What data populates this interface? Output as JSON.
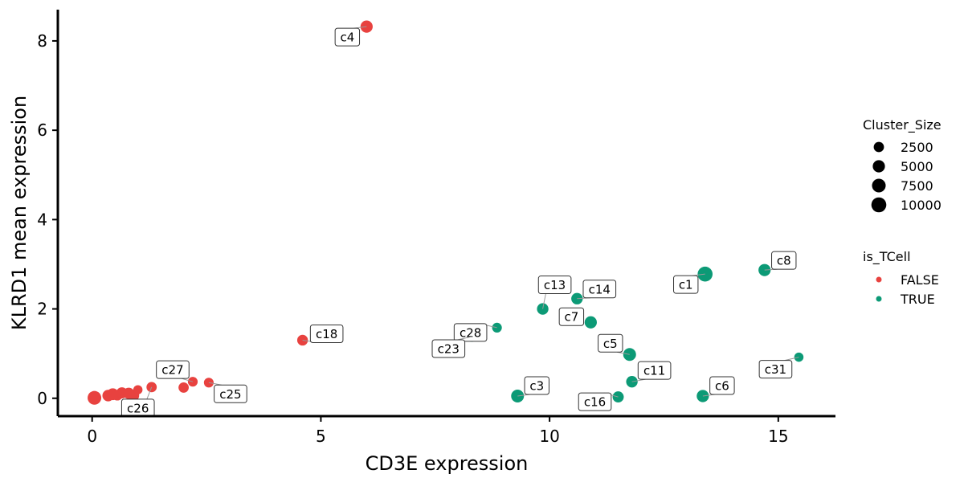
{
  "chart_data": {
    "type": "scatter",
    "xlabel": "CD3E expression",
    "ylabel": "KLRD1 mean expression",
    "xlim": [
      -0.75,
      16.25
    ],
    "ylim": [
      -0.4,
      8.7
    ],
    "x_ticks": [
      0,
      5,
      10,
      15
    ],
    "y_ticks": [
      0,
      2,
      4,
      6,
      8
    ],
    "grid": false,
    "legend_position": "right",
    "colors": {
      "FALSE": "#E8423F",
      "TRUE": "#0C9A76",
      "axis": "#000000",
      "legend_size_swatch": "#000000"
    },
    "size_legend": {
      "title": "Cluster_Size",
      "entries": [
        {
          "value": 2500,
          "label": "2500"
        },
        {
          "value": 5000,
          "label": "5000"
        },
        {
          "value": 7500,
          "label": "7500"
        },
        {
          "value": 10000,
          "label": "10000"
        }
      ]
    },
    "color_legend": {
      "title": "is_TCell",
      "entries": [
        {
          "key": "FALSE",
          "label": "FALSE"
        },
        {
          "key": "TRUE",
          "label": "TRUE"
        }
      ]
    },
    "points": [
      {
        "label": "c4",
        "x": 6.0,
        "y": 8.32,
        "size": 5000,
        "is_TCell": "FALSE"
      },
      {
        "label": "c18",
        "x": 4.6,
        "y": 1.3,
        "size": 3000,
        "is_TCell": "FALSE"
      },
      {
        "label": "c27",
        "x": 2.2,
        "y": 0.37,
        "size": 2000,
        "is_TCell": "FALSE"
      },
      {
        "label": "c26",
        "x": 1.3,
        "y": 0.25,
        "size": 2500,
        "is_TCell": "FALSE"
      },
      {
        "label": "c25",
        "x": 2.55,
        "y": 0.35,
        "size": 2000,
        "is_TCell": "FALSE"
      },
      {
        "label": "",
        "x": 0.05,
        "y": 0.01,
        "size": 7500,
        "is_TCell": "FALSE"
      },
      {
        "label": "",
        "x": 0.35,
        "y": 0.06,
        "size": 4000,
        "is_TCell": "FALSE"
      },
      {
        "label": "",
        "x": 0.45,
        "y": 0.09,
        "size": 4500,
        "is_TCell": "FALSE"
      },
      {
        "label": "",
        "x": 0.55,
        "y": 0.07,
        "size": 3000,
        "is_TCell": "FALSE"
      },
      {
        "label": "",
        "x": 0.65,
        "y": 0.12,
        "size": 3500,
        "is_TCell": "FALSE"
      },
      {
        "label": "",
        "x": 0.8,
        "y": 0.11,
        "size": 3800,
        "is_TCell": "FALSE"
      },
      {
        "label": "",
        "x": 0.9,
        "y": 0.06,
        "size": 4200,
        "is_TCell": "FALSE"
      },
      {
        "label": "",
        "x": 1.0,
        "y": 0.19,
        "size": 1500,
        "is_TCell": "FALSE"
      },
      {
        "label": "",
        "x": 2.0,
        "y": 0.24,
        "size": 2500,
        "is_TCell": "FALSE"
      },
      {
        "label": "c1",
        "x": 13.4,
        "y": 2.78,
        "size": 10000,
        "is_TCell": "TRUE"
      },
      {
        "label": "c8",
        "x": 14.7,
        "y": 2.87,
        "size": 5000,
        "is_TCell": "TRUE"
      },
      {
        "label": "c13",
        "x": 9.85,
        "y": 2.0,
        "size": 4000,
        "is_TCell": "TRUE"
      },
      {
        "label": "c14",
        "x": 10.6,
        "y": 2.23,
        "size": 4000,
        "is_TCell": "TRUE"
      },
      {
        "label": "c28",
        "x": 8.85,
        "y": 1.58,
        "size": 2000,
        "is_TCell": "TRUE"
      },
      {
        "label": "c7",
        "x": 10.9,
        "y": 1.7,
        "size": 5000,
        "is_TCell": "TRUE"
      },
      {
        "label": "c23",
        "x": 8.3,
        "y": 1.38,
        "size": 2500,
        "is_TCell": "TRUE"
      },
      {
        "label": "c5",
        "x": 11.75,
        "y": 0.98,
        "size": 6000,
        "is_TCell": "TRUE"
      },
      {
        "label": "c31",
        "x": 15.45,
        "y": 0.92,
        "size": 1500,
        "is_TCell": "TRUE"
      },
      {
        "label": "c11",
        "x": 11.8,
        "y": 0.37,
        "size": 4000,
        "is_TCell": "TRUE"
      },
      {
        "label": "c3",
        "x": 9.3,
        "y": 0.05,
        "size": 6000,
        "is_TCell": "TRUE"
      },
      {
        "label": "c6",
        "x": 13.35,
        "y": 0.05,
        "size": 5000,
        "is_TCell": "TRUE"
      },
      {
        "label": "c16",
        "x": 11.5,
        "y": 0.03,
        "size": 3500,
        "is_TCell": "TRUE"
      }
    ]
  }
}
